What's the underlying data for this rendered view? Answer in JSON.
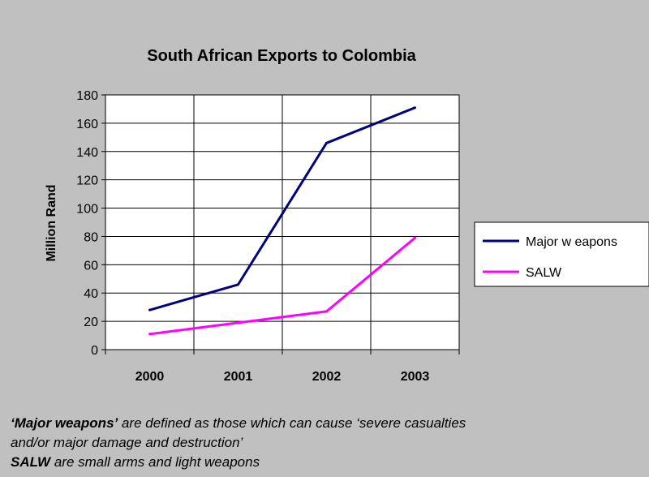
{
  "chart_data": {
    "type": "line",
    "title": "South African Exports to Colombia",
    "xlabel": "",
    "ylabel": "Million Rand",
    "categories": [
      "2000",
      "2001",
      "2002",
      "2003"
    ],
    "ylim": [
      0,
      180
    ],
    "yticks": [
      0,
      20,
      40,
      60,
      80,
      100,
      120,
      140,
      160,
      180
    ],
    "grid": "vertical and horizontal",
    "legend_position": "right",
    "series": [
      {
        "name": "Major w eapons",
        "color": "#000080",
        "values": [
          28,
          46,
          146,
          171
        ]
      },
      {
        "name": "SALW",
        "color": "#ff00ff",
        "values": [
          11,
          19,
          27,
          79
        ]
      }
    ]
  },
  "notes": {
    "line1_term": "‘Major weapons’",
    "line1_text": " are defined as those which can cause ‘severe casualties",
    "line2_text": "and/or major damage and destruction’",
    "line3_term": "SALW",
    "line3_text": " are small arms and light weapons"
  }
}
